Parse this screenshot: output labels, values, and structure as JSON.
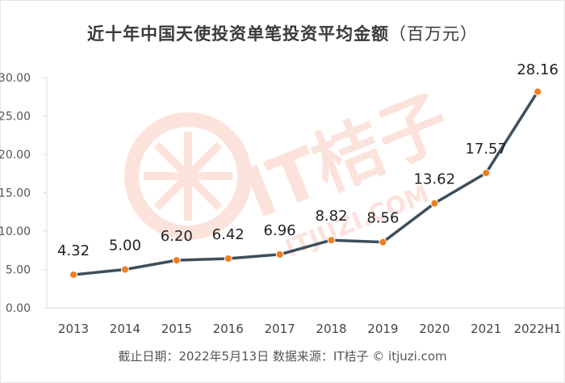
{
  "chart_data": {
    "type": "line",
    "title": "近十年中国天使投资单笔投资平均金额",
    "title_unit": "（百万元）",
    "categories": [
      "2013",
      "2014",
      "2015",
      "2016",
      "2017",
      "2018",
      "2019",
      "2020",
      "2021",
      "2022H1"
    ],
    "series": [
      {
        "values": [
          4.32,
          5.0,
          6.2,
          6.42,
          6.96,
          8.82,
          8.56,
          13.62,
          17.57,
          28.16
        ]
      }
    ],
    "data_labels": [
      "4.32",
      "5.00",
      "6.20",
      "6.42",
      "6.96",
      "8.82",
      "8.56",
      "13.62",
      "17.57",
      "28.16"
    ],
    "y_ticks": [
      "0.00",
      "5.00",
      "10.00",
      "15.00",
      "20.00",
      "25.00",
      "30.00"
    ],
    "ylim": [
      0,
      30
    ],
    "grid": false,
    "line_color": "#3d4f5c",
    "marker_color": "#f07d1f"
  },
  "watermark": {
    "brand": "IT桔子",
    "domain": "ITJUZI.COM",
    "color": "#fbe3dc"
  },
  "source": "截止日期：2022年5月13日    数据来源：IT桔子 © itjuzi.com"
}
